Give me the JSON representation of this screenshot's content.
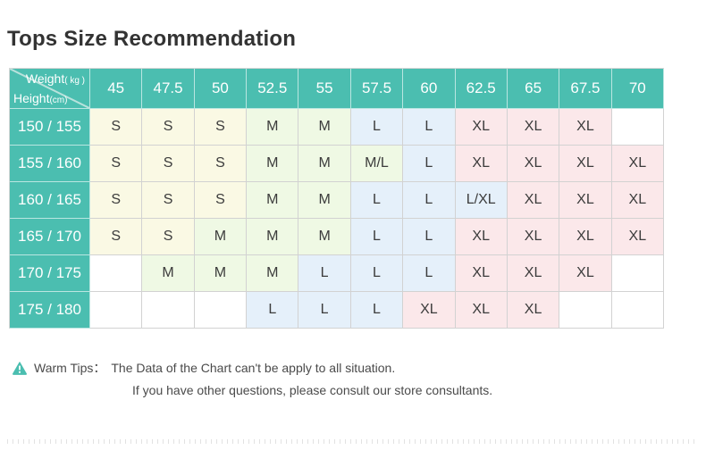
{
  "page": {
    "title": "Tops Size Recommendation"
  },
  "table": {
    "corner": {
      "weight_label": "Weight",
      "weight_unit": "( kg )",
      "height_label": "Height",
      "height_unit": "(cm)"
    },
    "weights": [
      "45",
      "47.5",
      "50",
      "52.5",
      "55",
      "57.5",
      "60",
      "62.5",
      "65",
      "67.5",
      "70"
    ],
    "heights": [
      "150 / 155",
      "155 / 160",
      "160 / 165",
      "165 / 170",
      "170 / 175",
      "175 / 180"
    ],
    "sizes": [
      [
        "S",
        "S",
        "S",
        "M",
        "M",
        "L",
        "L",
        "XL",
        "XL",
        "XL",
        ""
      ],
      [
        "S",
        "S",
        "S",
        "M",
        "M",
        "M/L",
        "L",
        "XL",
        "XL",
        "XL",
        "XL"
      ],
      [
        "S",
        "S",
        "S",
        "M",
        "M",
        "L",
        "L",
        "L/XL",
        "XL",
        "XL",
        "XL"
      ],
      [
        "S",
        "S",
        "M",
        "M",
        "M",
        "L",
        "L",
        "XL",
        "XL",
        "XL",
        "XL"
      ],
      [
        "",
        "M",
        "M",
        "M",
        "L",
        "L",
        "L",
        "XL",
        "XL",
        "XL",
        ""
      ],
      [
        "",
        "",
        "",
        "L",
        "L",
        "L",
        "XL",
        "XL",
        "XL",
        "",
        ""
      ]
    ]
  },
  "tips": {
    "label": "Warm Tips：",
    "line1": "The Data of the Chart can't be apply to all situation.",
    "line2": "If you have other questions, please consult our store consultants."
  },
  "colors": {
    "header_teal": "#4BBEB0",
    "size_S_bg": "#FAF9E4",
    "size_M_bg": "#EFF9E4",
    "size_L_bg": "#E5F0FA",
    "size_XL_bg": "#FBE8EA",
    "empty_bg": "#FFFFFF",
    "grid_line": "#D2D2D2",
    "warning_icon": "#4BBEB0",
    "title_text": "#333333"
  },
  "chart_data": {
    "type": "table",
    "title": "Tops Size Recommendation",
    "col_axis_label": "Weight (kg)",
    "row_axis_label": "Height (cm)",
    "columns": [
      45,
      47.5,
      50,
      52.5,
      55,
      57.5,
      60,
      62.5,
      65,
      67.5,
      70
    ],
    "rows": [
      "150/155",
      "155/160",
      "160/165",
      "165/170",
      "170/175",
      "175/180"
    ],
    "cells": [
      [
        "S",
        "S",
        "S",
        "M",
        "M",
        "L",
        "L",
        "XL",
        "XL",
        "XL",
        null
      ],
      [
        "S",
        "S",
        "S",
        "M",
        "M",
        "M/L",
        "L",
        "XL",
        "XL",
        "XL",
        "XL"
      ],
      [
        "S",
        "S",
        "S",
        "M",
        "M",
        "L",
        "L",
        "L/XL",
        "XL",
        "XL",
        "XL"
      ],
      [
        "S",
        "S",
        "M",
        "M",
        "M",
        "L",
        "L",
        "XL",
        "XL",
        "XL",
        "XL"
      ],
      [
        null,
        "M",
        "M",
        "M",
        "L",
        "L",
        "L",
        "XL",
        "XL",
        "XL",
        null
      ],
      [
        null,
        null,
        null,
        "L",
        "L",
        "L",
        "XL",
        "XL",
        "XL",
        null,
        null
      ]
    ],
    "legend": null,
    "notes": [
      "Warm Tips：The Data of the Chart can't be apply to all situation.",
      "If you have other questions, please consult our store consultants."
    ]
  }
}
